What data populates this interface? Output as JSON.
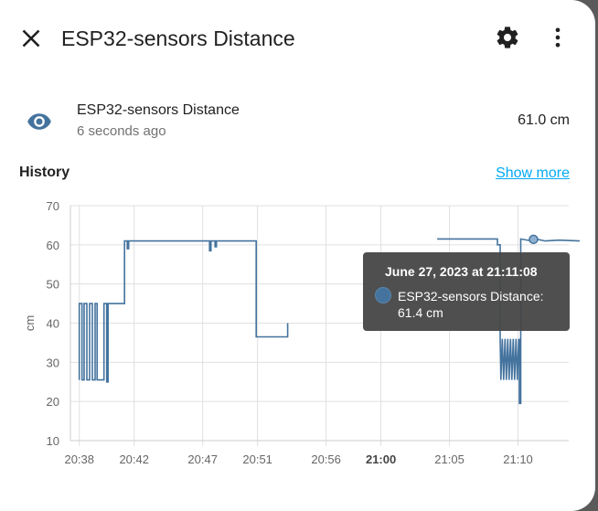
{
  "header": {
    "title": "ESP32-sensors Distance",
    "close_icon": "close-icon",
    "settings_icon": "gear-icon",
    "menu_icon": "more-vertical-icon"
  },
  "entity": {
    "icon": "eye-icon",
    "name": "ESP32-sensors Distance",
    "last_changed": "6 seconds ago",
    "state": "61.0 cm"
  },
  "history": {
    "title": "History",
    "show_more": "Show more"
  },
  "tooltip": {
    "date": "June 27, 2023 at 21:11:08",
    "series_label": "ESP32-sensors Distance:",
    "series_value": "61.4 cm"
  },
  "colors": {
    "series": "#44739e",
    "link": "#03a9f4",
    "grid": "#e0e0e0"
  },
  "chart_data": {
    "type": "line",
    "title": "",
    "xlabel": "",
    "ylabel": "cm",
    "ylim": [
      10,
      70
    ],
    "yticks": [
      10,
      20,
      30,
      40,
      50,
      60,
      70
    ],
    "xlim": [
      "20:37",
      "21:13"
    ],
    "xticks": [
      {
        "label": "20:38",
        "minute": 38,
        "bold": false
      },
      {
        "label": "20:42",
        "minute": 42,
        "bold": false
      },
      {
        "label": "20:47",
        "minute": 47,
        "bold": false
      },
      {
        "label": "20:51",
        "minute": 51,
        "bold": false
      },
      {
        "label": "20:56",
        "minute": 56,
        "bold": false
      },
      {
        "label": "21:00",
        "minute": 60,
        "bold": true
      },
      {
        "label": "21:05",
        "minute": 65,
        "bold": false
      },
      {
        "label": "21:10",
        "minute": 70,
        "bold": false
      }
    ],
    "series": [
      {
        "name": "ESP32-sensors Distance",
        "segments": [
          [
            [
              38.0,
              25.5
            ],
            [
              38.0,
              45
            ],
            [
              38.2,
              45
            ],
            [
              38.2,
              25.5
            ],
            [
              38.35,
              25.5
            ],
            [
              38.35,
              45
            ],
            [
              38.55,
              45
            ],
            [
              38.55,
              25.5
            ],
            [
              38.75,
              25.5
            ],
            [
              38.75,
              45
            ],
            [
              38.95,
              45
            ],
            [
              38.95,
              25.5
            ],
            [
              39.15,
              25.5
            ],
            [
              39.15,
              45
            ],
            [
              39.3,
              45
            ],
            [
              39.3,
              25.5
            ],
            [
              39.8,
              25.5
            ],
            [
              39.8,
              45
            ],
            [
              40.0,
              45
            ],
            [
              40.0,
              25.0
            ],
            [
              40.1,
              25.0
            ],
            [
              40.1,
              45
            ],
            [
              41.3,
              45
            ],
            [
              41.3,
              61
            ],
            [
              41.5,
              61
            ],
            [
              41.5,
              59
            ],
            [
              41.6,
              59
            ],
            [
              41.6,
              61
            ],
            [
              47.5,
              61
            ],
            [
              47.5,
              58.5
            ],
            [
              47.6,
              58.5
            ],
            [
              47.6,
              61
            ],
            [
              47.9,
              61
            ],
            [
              47.9,
              59.5
            ],
            [
              48.0,
              59.5
            ],
            [
              48.0,
              61
            ],
            [
              50.9,
              61
            ],
            [
              50.9,
              36.5
            ],
            [
              53.2,
              36.5
            ],
            [
              53.2,
              40
            ]
          ],
          [
            [
              64.1,
              61.5
            ],
            [
              68.5,
              61.5
            ],
            [
              68.5,
              60
            ],
            [
              68.7,
              60
            ],
            [
              68.7,
              36
            ],
            [
              68.75,
              25.5
            ],
            [
              68.85,
              36
            ],
            [
              68.95,
              25.5
            ],
            [
              69.05,
              36
            ],
            [
              69.15,
              25.5
            ],
            [
              69.25,
              36
            ],
            [
              69.35,
              25.5
            ],
            [
              69.45,
              36
            ],
            [
              69.55,
              25.5
            ],
            [
              69.65,
              36
            ],
            [
              69.75,
              25.5
            ],
            [
              69.85,
              36
            ],
            [
              69.95,
              25.5
            ],
            [
              70.05,
              36
            ],
            [
              70.15,
              25.5
            ],
            [
              70.1,
              36
            ],
            [
              70.1,
              19.5
            ],
            [
              70.2,
              19.5
            ],
            [
              70.2,
              61.5
            ],
            [
              71.0,
              61.0
            ],
            [
              71.4,
              61.4
            ],
            [
              72.0,
              61.0
            ],
            [
              73.0,
              61.2
            ],
            [
              74.5,
              61.0
            ]
          ]
        ]
      }
    ],
    "highlight": {
      "minute": 71.13,
      "value": 61.4
    }
  }
}
